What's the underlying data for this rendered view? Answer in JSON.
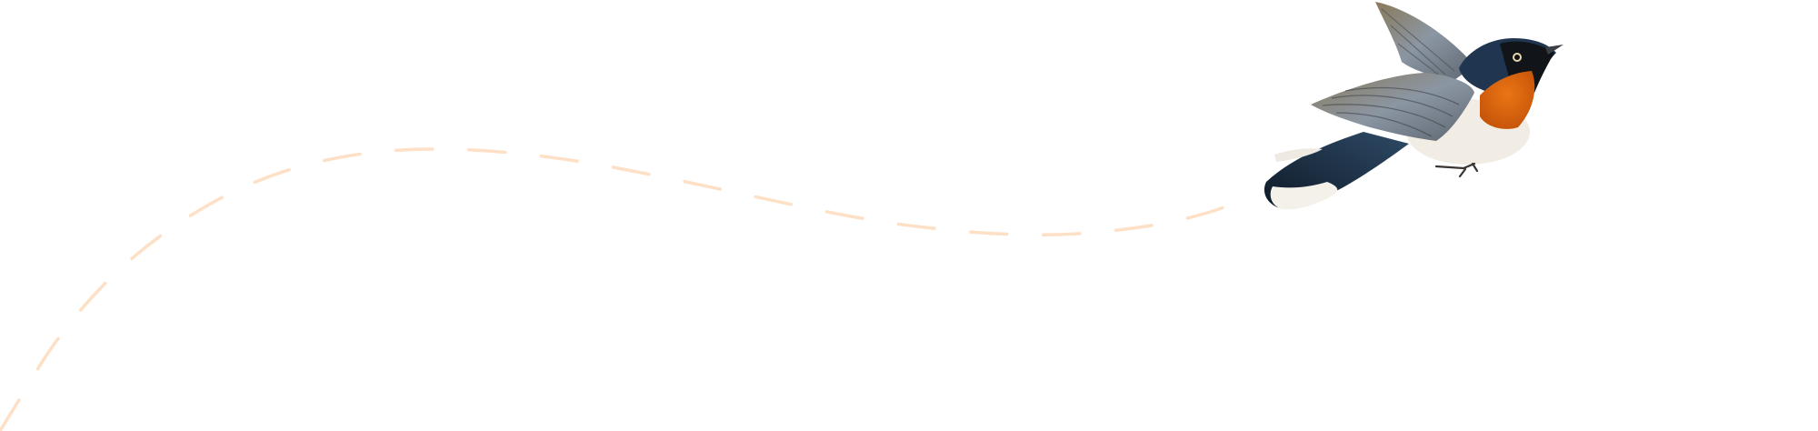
{
  "scene": {
    "background": "#ffffff",
    "flight_path": {
      "style": "dashed",
      "color": "#fde0c6"
    },
    "bird": {
      "illustration": "flying-bird-illustration",
      "colors": {
        "head": "#1f3550",
        "throat": "#e0670f",
        "belly": "#f1ede4",
        "wing": "#7d848a",
        "tail": "#17263a",
        "tail_tips": "#f4f1ea"
      }
    }
  }
}
